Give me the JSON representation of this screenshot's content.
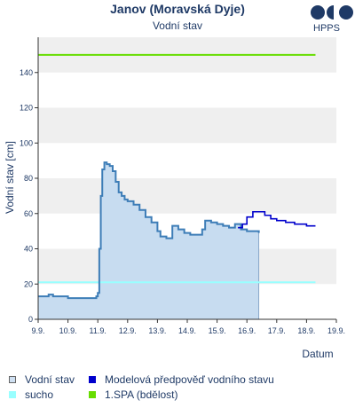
{
  "chart_data": {
    "type": "area",
    "title": "Janov (Moravská Dyje)",
    "subtitle": "Vodní stav",
    "ylabel": "Vodní stav [cm]",
    "xlabel": "Datum",
    "ylim": [
      0,
      160
    ],
    "yticks": [
      0,
      20,
      40,
      60,
      80,
      100,
      120,
      140
    ],
    "xlim": [
      0,
      10
    ],
    "xtick_labels": [
      "9.9.",
      "10.9.",
      "11.9.",
      "12.9.",
      "13.9.",
      "14.9.",
      "15.9.",
      "16.9.",
      "17.9.",
      "18.9.",
      "19.9."
    ],
    "grid": "alternating horizontal bands",
    "series": [
      {
        "name": "Vodní stav",
        "x": [
          0,
          0.3,
          0.35,
          0.5,
          0.7,
          0.9,
          1.0,
          1.5,
          1.8,
          1.95,
          2.0,
          2.05,
          2.1,
          2.15,
          2.22,
          2.3,
          2.4,
          2.5,
          2.6,
          2.7,
          2.8,
          2.9,
          3.0,
          3.2,
          3.4,
          3.6,
          3.8,
          4.0,
          4.1,
          4.3,
          4.5,
          4.7,
          4.9,
          5.1,
          5.3,
          5.5,
          5.6,
          5.8,
          6.0,
          6.2,
          6.4,
          6.6,
          6.8,
          7.0,
          7.2,
          7.4
        ],
        "y": [
          13,
          13,
          14,
          13,
          13,
          13,
          12,
          12,
          12,
          13,
          15,
          40,
          70,
          85,
          89,
          88,
          87,
          84,
          78,
          72,
          70,
          68,
          67,
          65,
          62,
          58,
          55,
          50,
          47,
          46,
          53,
          51,
          49,
          48,
          48,
          51,
          56,
          55,
          54,
          53,
          52,
          54,
          51,
          50,
          50,
          49
        ]
      },
      {
        "name": "Modelová předpověď vodního stavu",
        "x": [
          6.7,
          6.85,
          7.0,
          7.2,
          7.4,
          7.6,
          7.8,
          8.0,
          8.3,
          8.6,
          9.0,
          9.3
        ],
        "y": [
          52,
          54,
          58,
          61,
          61,
          59,
          57,
          56,
          55,
          54,
          53,
          53
        ]
      },
      {
        "name": "sucho",
        "x": [
          0,
          9.3
        ],
        "y": [
          21,
          21
        ]
      },
      {
        "name": "1.SPA (bdělost)",
        "x": [
          0,
          9.3
        ],
        "y": [
          150,
          150
        ]
      }
    ]
  },
  "logo": {
    "text": "HPPS"
  },
  "legend": [
    {
      "label": "Vodní stav",
      "swatch_fill": "#cfe0f2",
      "swatch_border": "#666666"
    },
    {
      "label": "Modelová předpověď vodního stavu",
      "swatch_fill": "#0000cc",
      "swatch_border": "#0000cc"
    },
    {
      "label": "sucho",
      "swatch_fill": "#99ffff",
      "swatch_border": "#99ffff"
    },
    {
      "label": "1.SPA (bdělost)",
      "swatch_fill": "#66dd00",
      "swatch_border": "#66dd00"
    }
  ],
  "colors": {
    "observed_line": "#3d7db7",
    "observed_fill": "#c7dcf0",
    "forecast_line": "#0000cc",
    "sucho_line": "#99ffff",
    "spa_line": "#66dd00",
    "band": "#efefef",
    "axis": "#1f3a66",
    "logo": "#1f3a66"
  }
}
